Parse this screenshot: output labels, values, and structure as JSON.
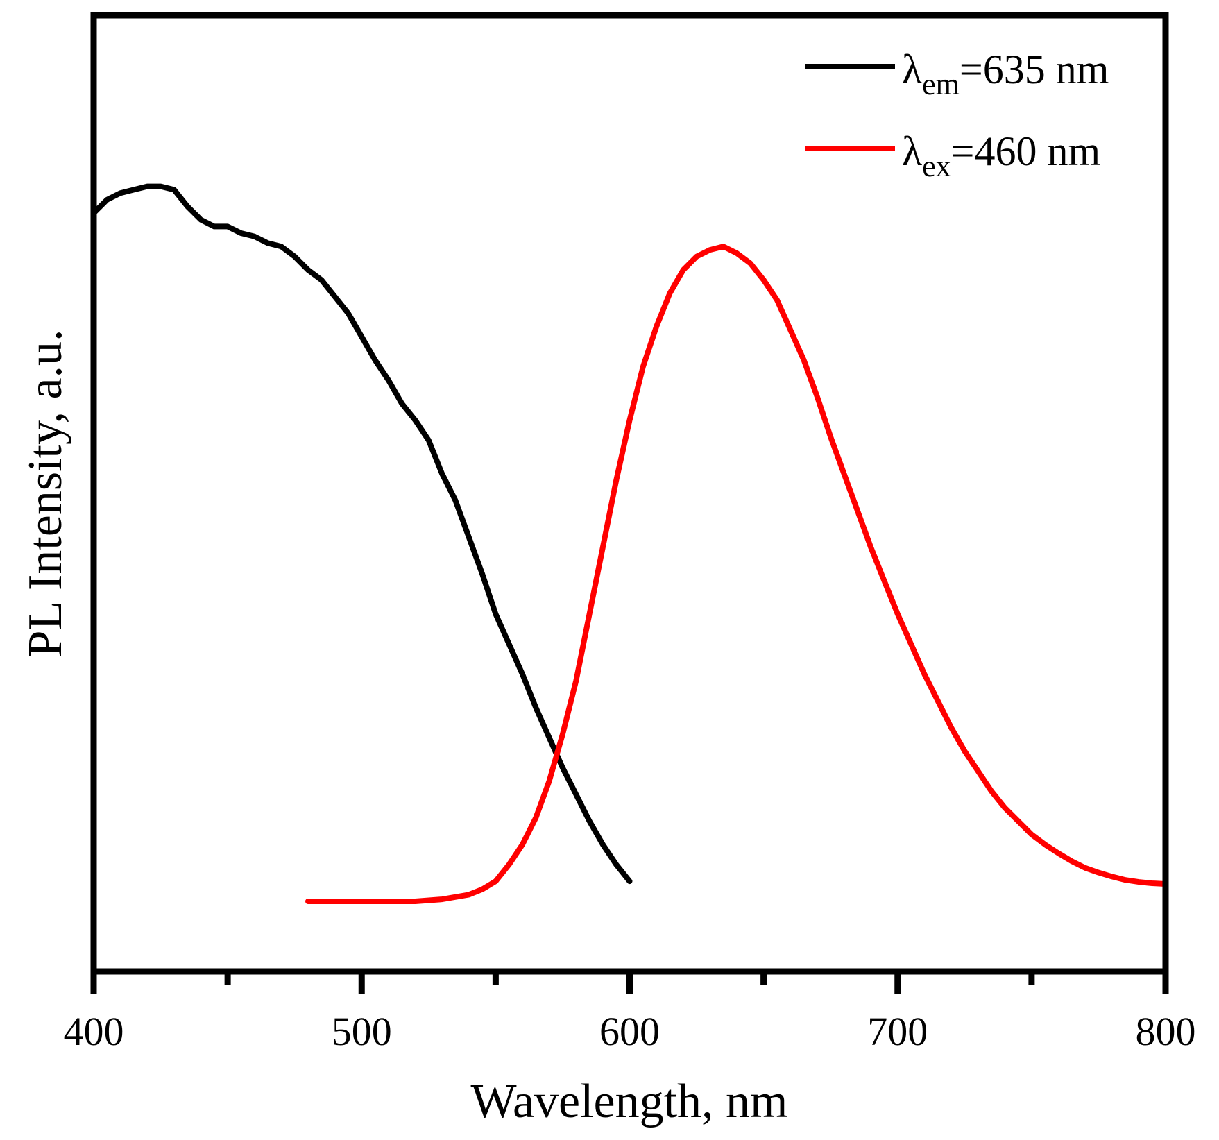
{
  "chart_data": {
    "type": "line",
    "title": "",
    "xlabel": "Wavelength, nm",
    "ylabel": "PL Intensity, a.u.",
    "xlim": [
      400,
      800
    ],
    "ylim": [
      0,
      1.1
    ],
    "x_ticks": [
      400,
      500,
      600,
      700,
      800
    ],
    "x_minor_ticks": [
      450,
      550,
      650,
      750
    ],
    "y_ticks_labeled": false,
    "grid": false,
    "legend_position": "top-right",
    "series": [
      {
        "name": "λem=635 nm",
        "legend": {
          "main": "λ",
          "sub": "em",
          "rest": "=635 nm"
        },
        "color": "#000000",
        "x": [
          400,
          405,
          410,
          415,
          420,
          425,
          430,
          435,
          440,
          445,
          450,
          455,
          460,
          465,
          470,
          475,
          480,
          485,
          490,
          495,
          500,
          505,
          510,
          515,
          520,
          525,
          530,
          535,
          540,
          545,
          550,
          555,
          560,
          565,
          570,
          575,
          580,
          585,
          590,
          595,
          600
        ],
        "y": [
          1.03,
          1.05,
          1.06,
          1.065,
          1.07,
          1.07,
          1.065,
          1.04,
          1.02,
          1.01,
          1.01,
          1.0,
          0.995,
          0.985,
          0.98,
          0.965,
          0.945,
          0.93,
          0.905,
          0.88,
          0.845,
          0.81,
          0.78,
          0.745,
          0.72,
          0.69,
          0.64,
          0.6,
          0.545,
          0.49,
          0.43,
          0.385,
          0.34,
          0.29,
          0.245,
          0.2,
          0.16,
          0.12,
          0.085,
          0.055,
          0.03
        ]
      },
      {
        "name": "λex=460 nm",
        "legend": {
          "main": "λ",
          "sub": "ex",
          "rest": "=460 nm"
        },
        "color": "#ff0000",
        "x": [
          480,
          490,
          500,
          510,
          520,
          530,
          540,
          545,
          550,
          555,
          560,
          565,
          570,
          575,
          580,
          585,
          590,
          595,
          600,
          605,
          610,
          615,
          620,
          625,
          630,
          635,
          640,
          645,
          650,
          655,
          660,
          665,
          670,
          675,
          680,
          685,
          690,
          695,
          700,
          705,
          710,
          715,
          720,
          725,
          730,
          735,
          740,
          745,
          750,
          755,
          760,
          765,
          770,
          775,
          780,
          785,
          790,
          795,
          800
        ],
        "y": [
          0.0,
          0.0,
          0.0,
          0.0,
          0.0,
          0.003,
          0.01,
          0.018,
          0.03,
          0.055,
          0.085,
          0.125,
          0.18,
          0.25,
          0.33,
          0.43,
          0.53,
          0.63,
          0.72,
          0.8,
          0.86,
          0.91,
          0.945,
          0.965,
          0.975,
          0.98,
          0.97,
          0.955,
          0.93,
          0.9,
          0.855,
          0.81,
          0.755,
          0.695,
          0.64,
          0.585,
          0.53,
          0.48,
          0.43,
          0.385,
          0.34,
          0.3,
          0.26,
          0.225,
          0.195,
          0.165,
          0.14,
          0.12,
          0.1,
          0.085,
          0.072,
          0.06,
          0.05,
          0.043,
          0.037,
          0.032,
          0.029,
          0.027,
          0.026
        ]
      }
    ]
  }
}
